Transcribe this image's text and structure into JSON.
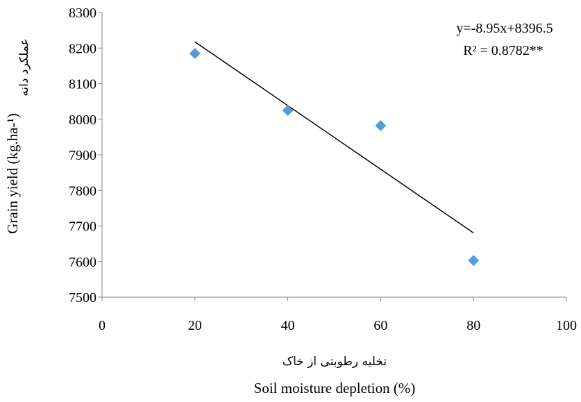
{
  "chart_data": {
    "type": "scatter",
    "title": "",
    "xlabel": "Soil moisture depletion  (%)",
    "xlabel_fa": "تخلیه رطوبتی از خاک",
    "ylabel": "Grain yield (kg.ha-¹)",
    "ylabel_fa": "عملکرد دانه",
    "xlim": [
      0,
      100
    ],
    "ylim": [
      7500,
      8300
    ],
    "x_ticks": [
      0,
      20,
      40,
      60,
      80,
      100
    ],
    "y_ticks": [
      7500,
      7600,
      7700,
      7800,
      7900,
      8000,
      8100,
      8200,
      8300
    ],
    "x_tick_labels": [
      "0",
      "20",
      "40",
      "60",
      "80",
      "100"
    ],
    "y_tick_labels": [
      "7500",
      "7600",
      "7700",
      "7800",
      "7900",
      "8000",
      "8100",
      "8200",
      "8300"
    ],
    "grid": false,
    "legend": "none",
    "series": [
      {
        "marker": "diamond",
        "color": "#5B9BD5",
        "x": [
          20,
          40,
          60,
          80
        ],
        "y": [
          8185,
          8025,
          7982,
          7603
        ]
      }
    ],
    "trendline": {
      "type": "linear",
      "slope": -8.95,
      "intercept": 8396.5,
      "x_range": [
        20,
        80
      ],
      "color": "#000000"
    },
    "annotations": {
      "equation": "y=-8.95x+8396.5",
      "r_squared": "R² = 0.8782**"
    }
  }
}
